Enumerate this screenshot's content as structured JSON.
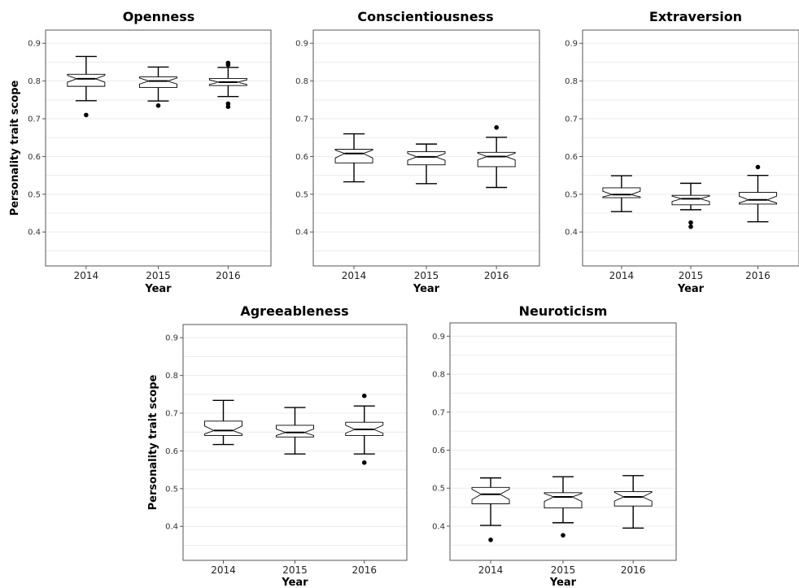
{
  "chart_data": [
    {
      "type": "box",
      "title": "Openness",
      "xlabel": "Year",
      "ylabel": "Personality trait scope",
      "categories": [
        "2014",
        "2015",
        "2016"
      ],
      "ylim": [
        0.31,
        0.935
      ],
      "yticks": [
        "0.4",
        "0.5",
        "0.6",
        "0.7",
        "0.8",
        "0.9"
      ],
      "boxes": [
        {
          "q1": 0.786,
          "median": 0.806,
          "q3": 0.818,
          "notch_low": 0.797,
          "notch_high": 0.815,
          "whisker_low": 0.748,
          "whisker_high": 0.865,
          "outliers": [
            0.71
          ]
        },
        {
          "q1": 0.783,
          "median": 0.8,
          "q3": 0.811,
          "notch_low": 0.792,
          "notch_high": 0.808,
          "whisker_low": 0.747,
          "whisker_high": 0.837,
          "outliers": [
            0.735
          ]
        },
        {
          "q1": 0.788,
          "median": 0.797,
          "q3": 0.807,
          "notch_low": 0.791,
          "notch_high": 0.803,
          "whisker_low": 0.759,
          "whisker_high": 0.836,
          "outliers": [
            0.848,
            0.843,
            0.74,
            0.732
          ]
        }
      ]
    },
    {
      "type": "box",
      "title": "Conscientiousness",
      "xlabel": "Year",
      "ylabel": "",
      "categories": [
        "2014",
        "2015",
        "2016"
      ],
      "ylim": [
        0.31,
        0.935
      ],
      "yticks": [
        "0.4",
        "0.5",
        "0.6",
        "0.7",
        "0.8",
        "0.9"
      ],
      "boxes": [
        {
          "q1": 0.583,
          "median": 0.608,
          "q3": 0.619,
          "notch_low": 0.596,
          "notch_high": 0.617,
          "whisker_low": 0.533,
          "whisker_high": 0.66,
          "outliers": []
        },
        {
          "q1": 0.578,
          "median": 0.599,
          "q3": 0.613,
          "notch_low": 0.59,
          "notch_high": 0.608,
          "whisker_low": 0.528,
          "whisker_high": 0.633,
          "outliers": []
        },
        {
          "q1": 0.573,
          "median": 0.6,
          "q3": 0.611,
          "notch_low": 0.591,
          "notch_high": 0.609,
          "whisker_low": 0.518,
          "whisker_high": 0.651,
          "outliers": [
            0.677
          ]
        }
      ]
    },
    {
      "type": "box",
      "title": "Extraversion",
      "xlabel": "Year",
      "ylabel": "",
      "categories": [
        "2014",
        "2015",
        "2016"
      ],
      "ylim": [
        0.31,
        0.935
      ],
      "yticks": [
        "0.4",
        "0.5",
        "0.6",
        "0.7",
        "0.8",
        "0.9"
      ],
      "boxes": [
        {
          "q1": 0.491,
          "median": 0.499,
          "q3": 0.517,
          "notch_low": 0.493,
          "notch_high": 0.508,
          "whisker_low": 0.454,
          "whisker_high": 0.549,
          "outliers": []
        },
        {
          "q1": 0.472,
          "median": 0.488,
          "q3": 0.497,
          "notch_low": 0.481,
          "notch_high": 0.495,
          "whisker_low": 0.459,
          "whisker_high": 0.529,
          "outliers": [
            0.425,
            0.414
          ]
        },
        {
          "q1": 0.474,
          "median": 0.485,
          "q3": 0.505,
          "notch_low": 0.477,
          "notch_high": 0.495,
          "whisker_low": 0.427,
          "whisker_high": 0.55,
          "outliers": [
            0.572
          ]
        }
      ]
    },
    {
      "type": "box",
      "title": "Agreeableness",
      "xlabel": "Year",
      "ylabel": "Personality trait scope",
      "categories": [
        "2014",
        "2015",
        "2016"
      ],
      "ylim": [
        0.31,
        0.935
      ],
      "yticks": [
        "0.4",
        "0.5",
        "0.6",
        "0.7",
        "0.8",
        "0.9"
      ],
      "boxes": [
        {
          "q1": 0.641,
          "median": 0.654,
          "q3": 0.679,
          "notch_low": 0.645,
          "notch_high": 0.666,
          "whisker_low": 0.617,
          "whisker_high": 0.734,
          "outliers": []
        },
        {
          "q1": 0.637,
          "median": 0.649,
          "q3": 0.668,
          "notch_low": 0.641,
          "notch_high": 0.658,
          "whisker_low": 0.592,
          "whisker_high": 0.715,
          "outliers": []
        },
        {
          "q1": 0.641,
          "median": 0.657,
          "q3": 0.676,
          "notch_low": 0.647,
          "notch_high": 0.668,
          "whisker_low": 0.592,
          "whisker_high": 0.719,
          "outliers": [
            0.746,
            0.569
          ]
        }
      ]
    },
    {
      "type": "box",
      "title": "Neuroticism",
      "xlabel": "Year",
      "ylabel": "",
      "categories": [
        "2014",
        "2015",
        "2016"
      ],
      "ylim": [
        0.31,
        0.935
      ],
      "yticks": [
        "0.4",
        "0.5",
        "0.6",
        "0.7",
        "0.8",
        "0.9"
      ],
      "boxes": [
        {
          "q1": 0.459,
          "median": 0.484,
          "q3": 0.502,
          "notch_low": 0.47,
          "notch_high": 0.497,
          "whisker_low": 0.402,
          "whisker_high": 0.527,
          "outliers": [
            0.364
          ]
        },
        {
          "q1": 0.448,
          "median": 0.477,
          "q3": 0.488,
          "notch_low": 0.465,
          "notch_high": 0.486,
          "whisker_low": 0.409,
          "whisker_high": 0.53,
          "outliers": [
            0.376
          ]
        },
        {
          "q1": 0.453,
          "median": 0.477,
          "q3": 0.491,
          "notch_low": 0.466,
          "notch_high": 0.489,
          "whisker_low": 0.395,
          "whisker_high": 0.533,
          "outliers": []
        }
      ]
    }
  ]
}
